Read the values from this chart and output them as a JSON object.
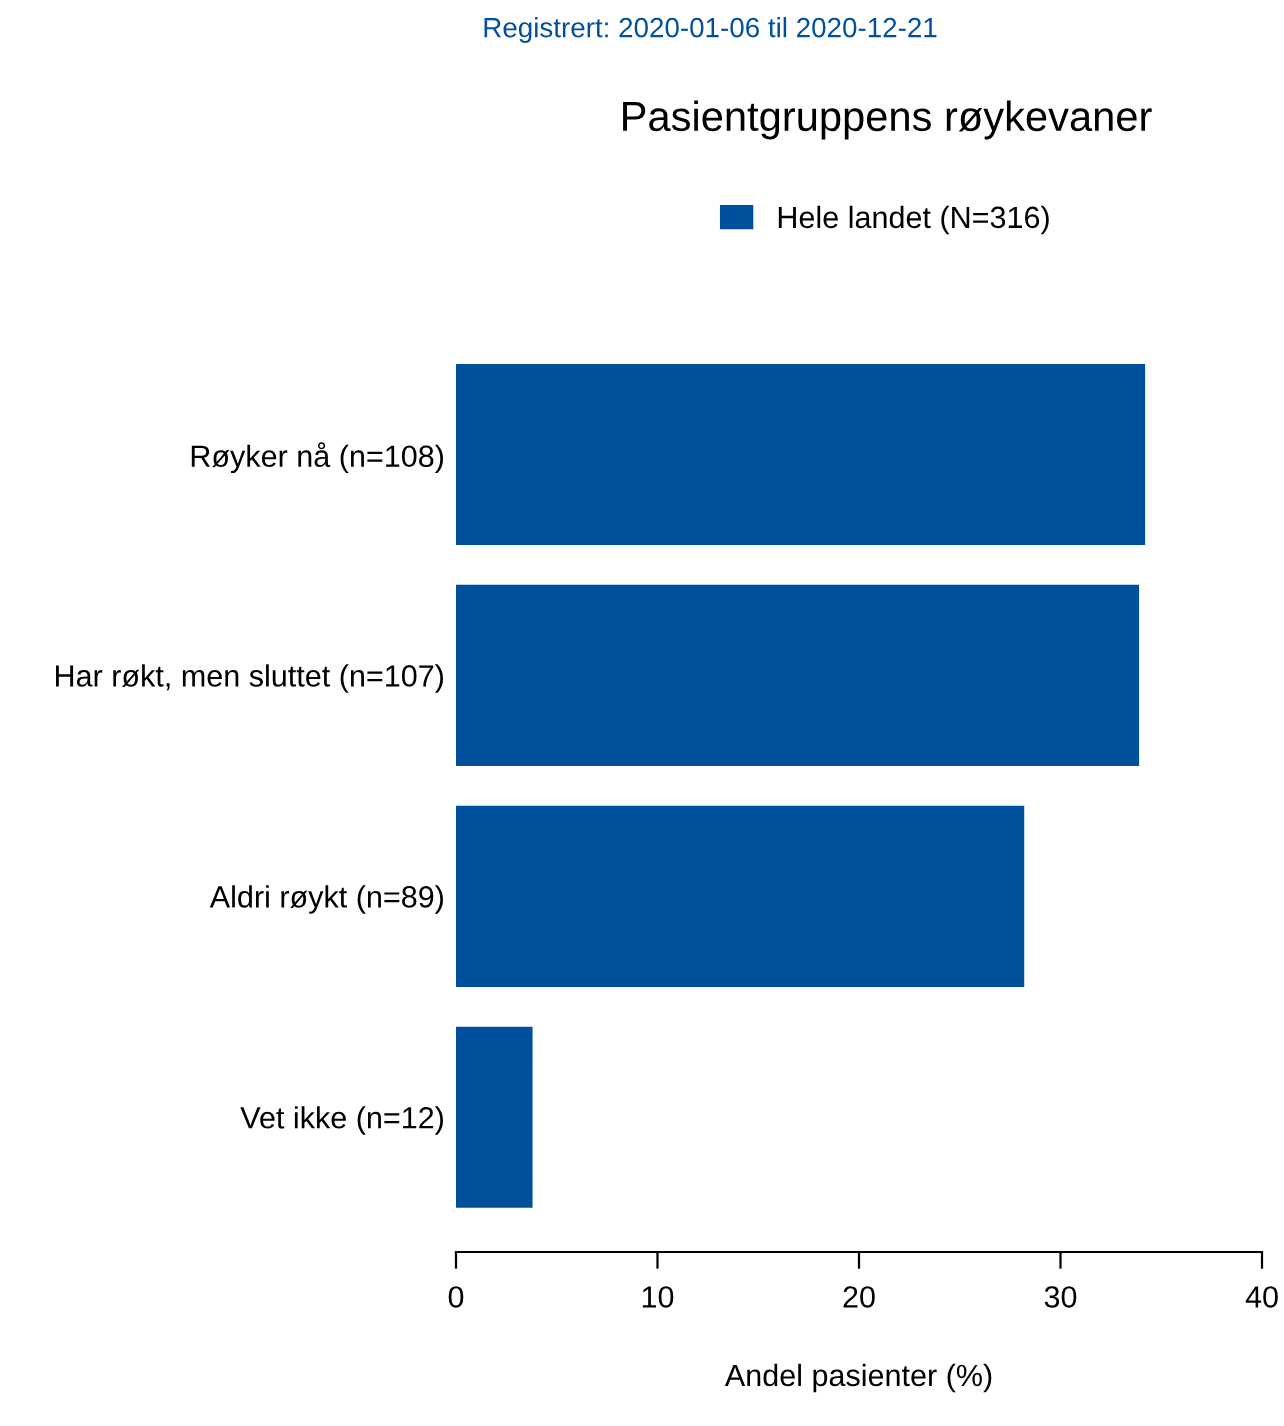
{
  "chart_data": {
    "type": "bar",
    "orientation": "horizontal",
    "title": "Pasientgruppens røykevaner",
    "subtitle": "Registrert: 2020-01-06 til 2020-12-21",
    "xlabel": "Andel pasienter (%)",
    "categories": [
      "Røyker nå (n=108)",
      "Har røkt, men sluttet (n=107)",
      "Aldri røykt (n=89)",
      "Vet ikke (n=12)"
    ],
    "series": [
      {
        "name": "Hele landet (N=316)",
        "color": "#00509e",
        "values": [
          34.2,
          33.9,
          28.2,
          3.8
        ]
      }
    ],
    "xlim": [
      0,
      40
    ],
    "xticks": [
      0,
      10,
      20,
      30,
      40
    ],
    "grid": false,
    "legend": "top"
  }
}
